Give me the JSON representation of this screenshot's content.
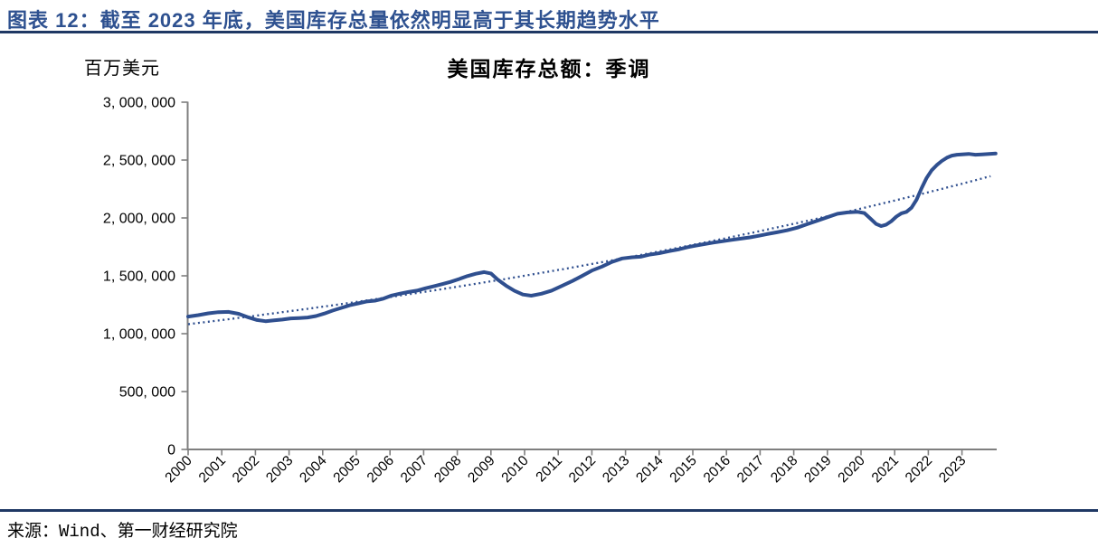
{
  "header": {
    "title": "图表 12：截至 2023 年底，美国库存总量依然明显高于其长期趋势水平"
  },
  "footer": {
    "source": "来源：Wind、第一财经研究院"
  },
  "colors": {
    "header_navy": "#2E5190",
    "rule_navy": "#1F3864",
    "line_navy": "#2F4F8F",
    "axis_gray": "#7F7F7F",
    "text_black": "#000000"
  },
  "chart_data": {
    "type": "line",
    "title": "美国库存总额：季调",
    "unit_label": "百万美元",
    "ylabel": "百万美元",
    "ylim": [
      0,
      3000000
    ],
    "grid": false,
    "legend": "none",
    "y_ticks": [
      {
        "value": 0,
        "label": "0"
      },
      {
        "value": 500000,
        "label": "500, 000"
      },
      {
        "value": 1000000,
        "label": "1, 000, 000"
      },
      {
        "value": 1500000,
        "label": "1, 500, 000"
      },
      {
        "value": 2000000,
        "label": "2, 000, 000"
      },
      {
        "value": 2500000,
        "label": "2, 500, 000"
      },
      {
        "value": 3000000,
        "label": "3, 000, 000"
      }
    ],
    "x_ticks": [
      "2000",
      "2001",
      "2002",
      "2003",
      "2004",
      "2005",
      "2006",
      "2007",
      "2008",
      "2009",
      "2010",
      "2011",
      "2012",
      "2013",
      "2014",
      "2015",
      "2016",
      "2017",
      "2018",
      "2019",
      "2020",
      "2021",
      "2022",
      "2023"
    ],
    "x_range": [
      2000,
      2024.1
    ],
    "series": [
      {
        "name": "美国库存总额：季调",
        "style": "solid",
        "color": "#2F4F8F",
        "points": [
          [
            2000.0,
            1148000
          ],
          [
            2000.3,
            1160000
          ],
          [
            2000.6,
            1176000
          ],
          [
            2000.9,
            1186000
          ],
          [
            2001.2,
            1188000
          ],
          [
            2001.5,
            1172000
          ],
          [
            2001.8,
            1140000
          ],
          [
            2002.05,
            1118000
          ],
          [
            2002.3,
            1108000
          ],
          [
            2002.55,
            1115000
          ],
          [
            2002.8,
            1122000
          ],
          [
            2003.05,
            1132000
          ],
          [
            2003.3,
            1135000
          ],
          [
            2003.55,
            1140000
          ],
          [
            2003.8,
            1152000
          ],
          [
            2004.05,
            1174000
          ],
          [
            2004.3,
            1200000
          ],
          [
            2004.55,
            1223000
          ],
          [
            2004.8,
            1245000
          ],
          [
            2005.05,
            1262000
          ],
          [
            2005.3,
            1278000
          ],
          [
            2005.55,
            1285000
          ],
          [
            2005.8,
            1302000
          ],
          [
            2006.05,
            1330000
          ],
          [
            2006.3,
            1346000
          ],
          [
            2006.55,
            1360000
          ],
          [
            2006.8,
            1372000
          ],
          [
            2007.05,
            1392000
          ],
          [
            2007.3,
            1409000
          ],
          [
            2007.55,
            1428000
          ],
          [
            2007.8,
            1448000
          ],
          [
            2008.05,
            1472000
          ],
          [
            2008.3,
            1498000
          ],
          [
            2008.55,
            1518000
          ],
          [
            2008.8,
            1532000
          ],
          [
            2009.0,
            1520000
          ],
          [
            2009.2,
            1468000
          ],
          [
            2009.45,
            1415000
          ],
          [
            2009.7,
            1370000
          ],
          [
            2009.95,
            1338000
          ],
          [
            2010.2,
            1328000
          ],
          [
            2010.5,
            1345000
          ],
          [
            2010.8,
            1372000
          ],
          [
            2011.1,
            1412000
          ],
          [
            2011.4,
            1452000
          ],
          [
            2011.7,
            1498000
          ],
          [
            2012.0,
            1545000
          ],
          [
            2012.3,
            1580000
          ],
          [
            2012.6,
            1620000
          ],
          [
            2012.9,
            1650000
          ],
          [
            2013.2,
            1660000
          ],
          [
            2013.45,
            1665000
          ],
          [
            2013.7,
            1682000
          ],
          [
            2014.0,
            1695000
          ],
          [
            2014.3,
            1713000
          ],
          [
            2014.6,
            1730000
          ],
          [
            2014.85,
            1748000
          ],
          [
            2015.1,
            1762000
          ],
          [
            2015.35,
            1774000
          ],
          [
            2015.6,
            1787000
          ],
          [
            2015.9,
            1799000
          ],
          [
            2016.15,
            1810000
          ],
          [
            2016.4,
            1820000
          ],
          [
            2016.7,
            1832000
          ],
          [
            2016.95,
            1845000
          ],
          [
            2017.2,
            1860000
          ],
          [
            2017.5,
            1876000
          ],
          [
            2017.8,
            1893000
          ],
          [
            2018.1,
            1916000
          ],
          [
            2018.4,
            1946000
          ],
          [
            2018.7,
            1976000
          ],
          [
            2019.0,
            2006000
          ],
          [
            2019.3,
            2036000
          ],
          [
            2019.6,
            2048000
          ],
          [
            2019.9,
            2052000
          ],
          [
            2020.1,
            2042000
          ],
          [
            2020.3,
            1988000
          ],
          [
            2020.45,
            1948000
          ],
          [
            2020.6,
            1930000
          ],
          [
            2020.75,
            1942000
          ],
          [
            2020.9,
            1972000
          ],
          [
            2021.05,
            2012000
          ],
          [
            2021.2,
            2040000
          ],
          [
            2021.35,
            2052000
          ],
          [
            2021.5,
            2088000
          ],
          [
            2021.65,
            2158000
          ],
          [
            2021.8,
            2258000
          ],
          [
            2021.95,
            2345000
          ],
          [
            2022.1,
            2412000
          ],
          [
            2022.25,
            2456000
          ],
          [
            2022.4,
            2492000
          ],
          [
            2022.55,
            2520000
          ],
          [
            2022.7,
            2538000
          ],
          [
            2022.85,
            2546000
          ],
          [
            2023.0,
            2549000
          ],
          [
            2023.2,
            2553000
          ],
          [
            2023.4,
            2546000
          ],
          [
            2023.6,
            2549000
          ],
          [
            2023.8,
            2553000
          ],
          [
            2024.0,
            2556000
          ]
        ]
      },
      {
        "name": "长期趋势",
        "style": "dotted",
        "color": "#2F4F8F",
        "kind": "exponential",
        "start": [
          2000.0,
          1082000
        ],
        "end": [
          2024.0,
          2372000
        ],
        "draw_to": 2023.85
      }
    ]
  }
}
